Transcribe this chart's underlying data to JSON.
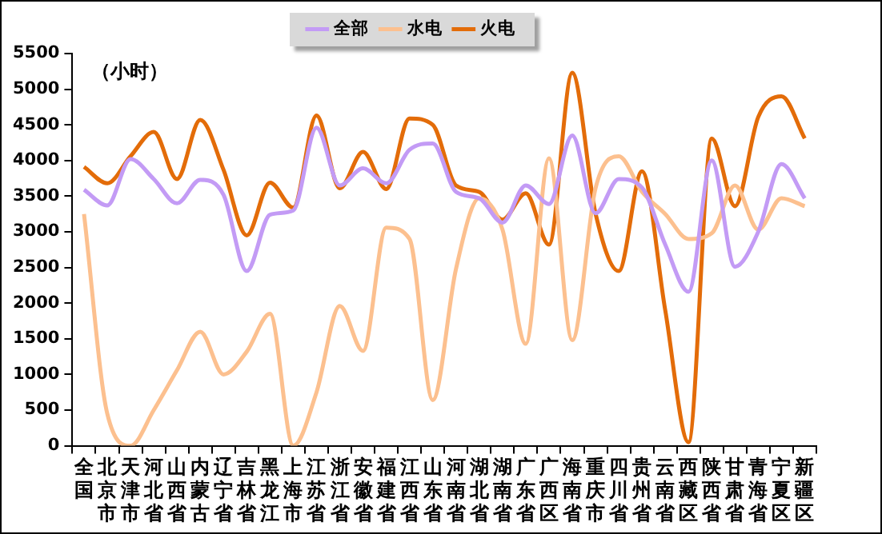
{
  "chart_data": {
    "type": "line",
    "ylabel": "（小时）",
    "categories": [
      "全国",
      "北京市",
      "天津市",
      "河北省",
      "山西省",
      "内蒙古",
      "辽宁省",
      "吉林省",
      "黑龙江",
      "上海市",
      "江苏省",
      "浙江省",
      "安徽省",
      "福建省",
      "江西省",
      "山东省",
      "河南省",
      "湖北省",
      "湖南省",
      "广东省",
      "广西区",
      "海南省",
      "重庆市",
      "四川省",
      "贵州省",
      "云南省",
      "西藏区",
      "陕西省",
      "甘肃省",
      "青海省",
      "宁夏区",
      "新疆区"
    ],
    "series": [
      {
        "name": "全部",
        "color": "#c39bf5",
        "values": [
          3590,
          3370,
          4020,
          3740,
          3400,
          3730,
          3520,
          2450,
          3240,
          3300,
          4460,
          3650,
          3890,
          3680,
          4150,
          4240,
          3560,
          3470,
          3130,
          3650,
          3390,
          4350,
          3260,
          3740,
          3620,
          2820,
          2160,
          4000,
          2510,
          3000,
          3950,
          3470
        ]
      },
      {
        "name": "水电",
        "color": "#fcc08f",
        "values": [
          3250,
          450,
          0,
          500,
          1060,
          1600,
          1000,
          1320,
          1850,
          0,
          750,
          1960,
          1330,
          3060,
          2900,
          640,
          2480,
          3470,
          3030,
          1430,
          4030,
          1480,
          3610,
          4060,
          3560,
          3250,
          2900,
          2980,
          3650,
          3030,
          3470,
          3360
        ]
      },
      {
        "name": "火电",
        "color": "#e36c09",
        "values": [
          3910,
          3680,
          4060,
          4400,
          3740,
          4570,
          3870,
          2950,
          3690,
          3340,
          4630,
          3610,
          4120,
          3600,
          4590,
          4500,
          3650,
          3560,
          3170,
          3540,
          2820,
          5230,
          3260,
          2450,
          3850,
          1900,
          50,
          4310,
          3360,
          4610,
          4900,
          4310
        ]
      }
    ],
    "ylim": [
      0,
      5500
    ],
    "yticks": [
      0,
      500,
      1000,
      1500,
      2000,
      2500,
      3000,
      3500,
      4000,
      4500,
      5000,
      5500
    ],
    "grid": false,
    "legend": "top",
    "marker": "none",
    "line_style": "solid"
  }
}
